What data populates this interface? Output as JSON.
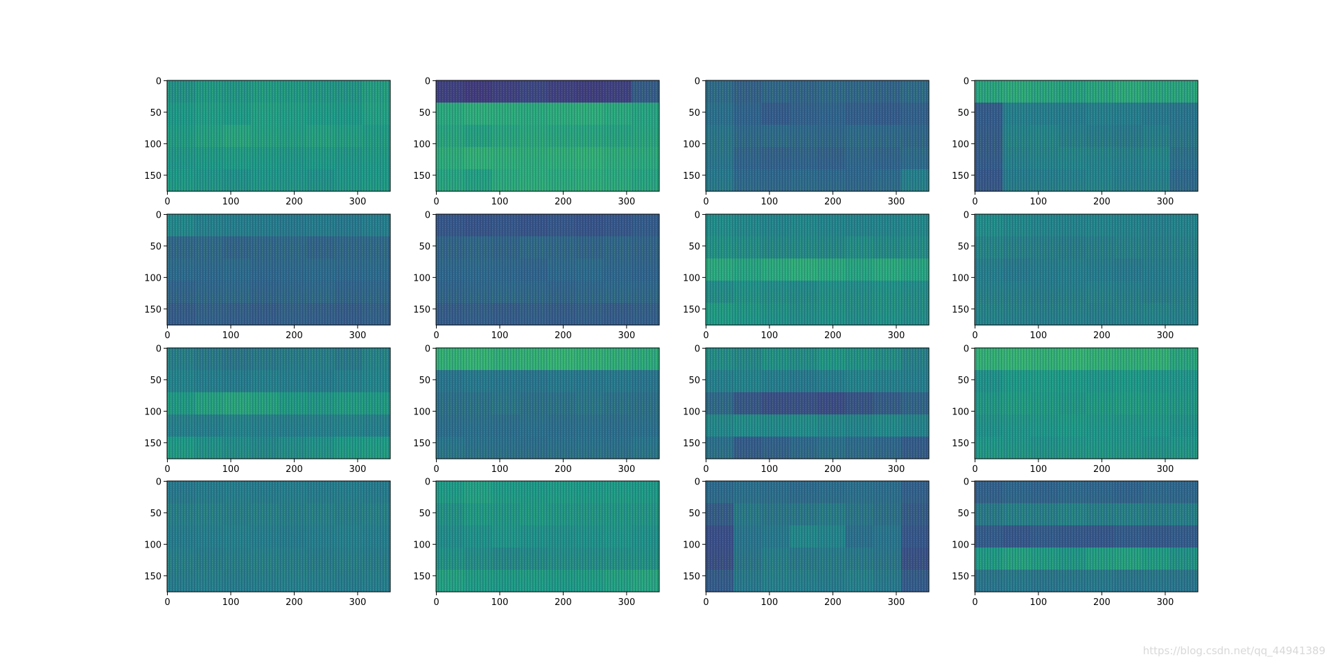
{
  "chart_data": [
    {
      "type": "heatmap",
      "colormap": "viridis",
      "clim": [
        0,
        1
      ],
      "xlim": [
        -0.5,
        351.5
      ],
      "ylim": [
        175.5,
        -0.5
      ],
      "xticks": [
        0,
        100,
        200,
        300
      ],
      "yticks": [
        0,
        50,
        100,
        150
      ],
      "values": [
        [
          0.52,
          0.55,
          0.54,
          0.56,
          0.55,
          0.54,
          0.53,
          0.57
        ],
        [
          0.55,
          0.57,
          0.56,
          0.58,
          0.57,
          0.56,
          0.55,
          0.58
        ],
        [
          0.56,
          0.58,
          0.6,
          0.58,
          0.57,
          0.58,
          0.57,
          0.56
        ],
        [
          0.54,
          0.55,
          0.56,
          0.55,
          0.54,
          0.55,
          0.54,
          0.55
        ],
        [
          0.55,
          0.53,
          0.52,
          0.54,
          0.53,
          0.52,
          0.54,
          0.55
        ]
      ]
    },
    {
      "type": "heatmap",
      "colormap": "viridis",
      "clim": [
        0,
        1
      ],
      "xlim": [
        -0.5,
        351.5
      ],
      "ylim": [
        175.5,
        -0.5
      ],
      "xticks": [
        0,
        100,
        200,
        300
      ],
      "yticks": [
        0,
        50,
        100,
        150
      ],
      "values": [
        [
          0.2,
          0.18,
          0.2,
          0.22,
          0.2,
          0.19,
          0.2,
          0.3
        ],
        [
          0.62,
          0.64,
          0.63,
          0.62,
          0.63,
          0.64,
          0.62,
          0.6
        ],
        [
          0.6,
          0.58,
          0.6,
          0.61,
          0.6,
          0.6,
          0.59,
          0.6
        ],
        [
          0.63,
          0.65,
          0.64,
          0.63,
          0.64,
          0.65,
          0.63,
          0.62
        ],
        [
          0.6,
          0.58,
          0.62,
          0.63,
          0.62,
          0.63,
          0.62,
          0.6
        ]
      ]
    },
    {
      "type": "heatmap",
      "colormap": "viridis",
      "clim": [
        0,
        1
      ],
      "xlim": [
        -0.5,
        351.5
      ],
      "ylim": [
        175.5,
        -0.5
      ],
      "xticks": [
        0,
        100,
        200,
        300
      ],
      "yticks": [
        0,
        50,
        100,
        150
      ],
      "values": [
        [
          0.36,
          0.32,
          0.34,
          0.33,
          0.35,
          0.34,
          0.33,
          0.36
        ],
        [
          0.38,
          0.33,
          0.3,
          0.32,
          0.33,
          0.31,
          0.3,
          0.32
        ],
        [
          0.4,
          0.35,
          0.36,
          0.35,
          0.34,
          0.36,
          0.35,
          0.34
        ],
        [
          0.4,
          0.33,
          0.32,
          0.33,
          0.32,
          0.34,
          0.33,
          0.36
        ],
        [
          0.42,
          0.35,
          0.34,
          0.36,
          0.35,
          0.34,
          0.36,
          0.45
        ]
      ]
    },
    {
      "type": "heatmap",
      "colormap": "viridis",
      "clim": [
        0,
        1
      ],
      "xlim": [
        -0.5,
        351.5
      ],
      "ylim": [
        175.5,
        -0.5
      ],
      "xticks": [
        0,
        100,
        200,
        300
      ],
      "yticks": [
        0,
        50,
        100,
        150
      ],
      "values": [
        [
          0.6,
          0.62,
          0.6,
          0.58,
          0.6,
          0.62,
          0.6,
          0.6
        ],
        [
          0.3,
          0.45,
          0.44,
          0.43,
          0.45,
          0.44,
          0.42,
          0.4
        ],
        [
          0.3,
          0.46,
          0.47,
          0.44,
          0.43,
          0.42,
          0.44,
          0.4
        ],
        [
          0.3,
          0.45,
          0.46,
          0.47,
          0.46,
          0.45,
          0.47,
          0.38
        ],
        [
          0.28,
          0.43,
          0.44,
          0.45,
          0.46,
          0.44,
          0.45,
          0.35
        ]
      ]
    },
    {
      "type": "heatmap",
      "colormap": "viridis",
      "clim": [
        0,
        1
      ],
      "xlim": [
        -0.5,
        351.5
      ],
      "ylim": [
        175.5,
        -0.5
      ],
      "xticks": [
        0,
        100,
        200,
        300
      ],
      "yticks": [
        0,
        50,
        100,
        150
      ],
      "values": [
        [
          0.48,
          0.45,
          0.44,
          0.43,
          0.42,
          0.43,
          0.42,
          0.44
        ],
        [
          0.34,
          0.35,
          0.33,
          0.34,
          0.35,
          0.33,
          0.34,
          0.35
        ],
        [
          0.36,
          0.35,
          0.36,
          0.34,
          0.35,
          0.36,
          0.35,
          0.36
        ],
        [
          0.33,
          0.34,
          0.35,
          0.33,
          0.34,
          0.35,
          0.33,
          0.34
        ],
        [
          0.3,
          0.32,
          0.31,
          0.3,
          0.32,
          0.31,
          0.3,
          0.32
        ]
      ]
    },
    {
      "type": "heatmap",
      "colormap": "viridis",
      "clim": [
        0,
        1
      ],
      "xlim": [
        -0.5,
        351.5
      ],
      "ylim": [
        175.5,
        -0.5
      ],
      "xticks": [
        0,
        100,
        200,
        300
      ],
      "yticks": [
        0,
        50,
        100,
        150
      ],
      "values": [
        [
          0.28,
          0.27,
          0.28,
          0.27,
          0.28,
          0.27,
          0.28,
          0.3
        ],
        [
          0.33,
          0.34,
          0.33,
          0.35,
          0.34,
          0.33,
          0.34,
          0.33
        ],
        [
          0.34,
          0.35,
          0.34,
          0.33,
          0.35,
          0.36,
          0.34,
          0.33
        ],
        [
          0.33,
          0.34,
          0.35,
          0.34,
          0.33,
          0.34,
          0.35,
          0.34
        ],
        [
          0.3,
          0.31,
          0.3,
          0.31,
          0.3,
          0.31,
          0.3,
          0.31
        ]
      ]
    },
    {
      "type": "heatmap",
      "colormap": "viridis",
      "clim": [
        0,
        1
      ],
      "xlim": [
        -0.5,
        351.5
      ],
      "ylim": [
        175.5,
        -0.5
      ],
      "xticks": [
        0,
        100,
        200,
        300
      ],
      "yticks": [
        0,
        50,
        100,
        150
      ],
      "values": [
        [
          0.5,
          0.48,
          0.47,
          0.48,
          0.47,
          0.46,
          0.47,
          0.48
        ],
        [
          0.52,
          0.5,
          0.48,
          0.49,
          0.48,
          0.5,
          0.49,
          0.5
        ],
        [
          0.62,
          0.6,
          0.62,
          0.64,
          0.62,
          0.6,
          0.62,
          0.6
        ],
        [
          0.5,
          0.52,
          0.5,
          0.49,
          0.51,
          0.5,
          0.52,
          0.5
        ],
        [
          0.56,
          0.54,
          0.52,
          0.5,
          0.52,
          0.5,
          0.52,
          0.5
        ]
      ]
    },
    {
      "type": "heatmap",
      "colormap": "viridis",
      "clim": [
        0,
        1
      ],
      "xlim": [
        -0.5,
        351.5
      ],
      "ylim": [
        175.5,
        -0.5
      ],
      "xticks": [
        0,
        100,
        200,
        300
      ],
      "yticks": [
        0,
        50,
        100,
        150
      ],
      "values": [
        [
          0.5,
          0.48,
          0.47,
          0.46,
          0.47,
          0.46,
          0.45,
          0.46
        ],
        [
          0.47,
          0.45,
          0.44,
          0.43,
          0.44,
          0.45,
          0.44,
          0.45
        ],
        [
          0.44,
          0.42,
          0.43,
          0.44,
          0.43,
          0.42,
          0.43,
          0.44
        ],
        [
          0.45,
          0.44,
          0.43,
          0.44,
          0.45,
          0.44,
          0.43,
          0.44
        ],
        [
          0.46,
          0.45,
          0.44,
          0.45,
          0.44,
          0.45,
          0.46,
          0.45
        ]
      ]
    },
    {
      "type": "heatmap",
      "colormap": "viridis",
      "clim": [
        0,
        1
      ],
      "xlim": [
        -0.5,
        351.5
      ],
      "ylim": [
        175.5,
        -0.5
      ],
      "xticks": [
        0,
        100,
        200,
        300
      ],
      "yticks": [
        0,
        50,
        100,
        150
      ],
      "values": [
        [
          0.44,
          0.42,
          0.4,
          0.42,
          0.43,
          0.44,
          0.42,
          0.46
        ],
        [
          0.46,
          0.44,
          0.43,
          0.45,
          0.44,
          0.43,
          0.45,
          0.47
        ],
        [
          0.55,
          0.58,
          0.6,
          0.58,
          0.55,
          0.54,
          0.56,
          0.55
        ],
        [
          0.45,
          0.44,
          0.46,
          0.45,
          0.44,
          0.45,
          0.46,
          0.45
        ],
        [
          0.55,
          0.52,
          0.5,
          0.48,
          0.5,
          0.52,
          0.55,
          0.56
        ]
      ]
    },
    {
      "type": "heatmap",
      "colormap": "viridis",
      "clim": [
        0,
        1
      ],
      "xlim": [
        -0.5,
        351.5
      ],
      "ylim": [
        175.5,
        -0.5
      ],
      "xticks": [
        0,
        100,
        200,
        300
      ],
      "yticks": [
        0,
        50,
        100,
        150
      ],
      "values": [
        [
          0.65,
          0.66,
          0.64,
          0.65,
          0.66,
          0.65,
          0.64,
          0.62
        ],
        [
          0.4,
          0.42,
          0.41,
          0.4,
          0.42,
          0.41,
          0.42,
          0.4
        ],
        [
          0.38,
          0.39,
          0.4,
          0.38,
          0.39,
          0.4,
          0.39,
          0.38
        ],
        [
          0.37,
          0.38,
          0.37,
          0.38,
          0.37,
          0.38,
          0.37,
          0.38
        ],
        [
          0.4,
          0.39,
          0.38,
          0.37,
          0.38,
          0.39,
          0.38,
          0.4
        ]
      ]
    },
    {
      "type": "heatmap",
      "colormap": "viridis",
      "clim": [
        0,
        1
      ],
      "xlim": [
        -0.5,
        351.5
      ],
      "ylim": [
        175.5,
        -0.5
      ],
      "xticks": [
        0,
        100,
        200,
        300
      ],
      "yticks": [
        0,
        50,
        100,
        150
      ],
      "values": [
        [
          0.5,
          0.48,
          0.52,
          0.5,
          0.54,
          0.52,
          0.5,
          0.45
        ],
        [
          0.45,
          0.46,
          0.44,
          0.42,
          0.44,
          0.46,
          0.45,
          0.44
        ],
        [
          0.35,
          0.28,
          0.25,
          0.26,
          0.24,
          0.27,
          0.3,
          0.33
        ],
        [
          0.48,
          0.5,
          0.49,
          0.5,
          0.48,
          0.47,
          0.49,
          0.46
        ],
        [
          0.38,
          0.3,
          0.32,
          0.35,
          0.38,
          0.36,
          0.34,
          0.3
        ]
      ]
    },
    {
      "type": "heatmap",
      "colormap": "viridis",
      "clim": [
        0,
        1
      ],
      "xlim": [
        -0.5,
        351.5
      ],
      "ylim": [
        175.5,
        -0.5
      ],
      "xticks": [
        0,
        100,
        200,
        300
      ],
      "yticks": [
        0,
        50,
        100,
        150
      ],
      "values": [
        [
          0.65,
          0.66,
          0.65,
          0.66,
          0.65,
          0.64,
          0.65,
          0.6
        ],
        [
          0.52,
          0.55,
          0.56,
          0.55,
          0.54,
          0.55,
          0.54,
          0.53
        ],
        [
          0.54,
          0.56,
          0.55,
          0.54,
          0.55,
          0.56,
          0.55,
          0.54
        ],
        [
          0.52,
          0.53,
          0.54,
          0.55,
          0.54,
          0.53,
          0.54,
          0.52
        ],
        [
          0.54,
          0.53,
          0.52,
          0.53,
          0.54,
          0.53,
          0.52,
          0.53
        ]
      ]
    },
    {
      "type": "heatmap",
      "colormap": "viridis",
      "clim": [
        0,
        1
      ],
      "xlim": [
        -0.5,
        351.5
      ],
      "ylim": [
        175.5,
        -0.5
      ],
      "xticks": [
        0,
        100,
        200,
        300
      ],
      "yticks": [
        0,
        50,
        100,
        150
      ],
      "values": [
        [
          0.42,
          0.43,
          0.44,
          0.43,
          0.44,
          0.43,
          0.44,
          0.43
        ],
        [
          0.44,
          0.45,
          0.44,
          0.45,
          0.44,
          0.45,
          0.44,
          0.45
        ],
        [
          0.43,
          0.44,
          0.45,
          0.44,
          0.43,
          0.44,
          0.45,
          0.44
        ],
        [
          0.44,
          0.43,
          0.44,
          0.45,
          0.44,
          0.43,
          0.44,
          0.43
        ],
        [
          0.43,
          0.44,
          0.43,
          0.44,
          0.45,
          0.44,
          0.43,
          0.44
        ]
      ]
    },
    {
      "type": "heatmap",
      "colormap": "viridis",
      "clim": [
        0,
        1
      ],
      "xlim": [
        -0.5,
        351.5
      ],
      "ylim": [
        175.5,
        -0.5
      ],
      "xticks": [
        0,
        100,
        200,
        300
      ],
      "yticks": [
        0,
        50,
        100,
        150
      ],
      "values": [
        [
          0.56,
          0.58,
          0.56,
          0.55,
          0.56,
          0.55,
          0.56,
          0.55
        ],
        [
          0.52,
          0.55,
          0.54,
          0.55,
          0.54,
          0.53,
          0.54,
          0.53
        ],
        [
          0.5,
          0.52,
          0.53,
          0.52,
          0.51,
          0.52,
          0.53,
          0.52
        ],
        [
          0.52,
          0.5,
          0.48,
          0.49,
          0.5,
          0.5,
          0.51,
          0.52
        ],
        [
          0.58,
          0.56,
          0.55,
          0.56,
          0.55,
          0.56,
          0.58,
          0.6
        ]
      ]
    },
    {
      "type": "heatmap",
      "colormap": "viridis",
      "clim": [
        0,
        1
      ],
      "xlim": [
        -0.5,
        351.5
      ],
      "ylim": [
        175.5,
        -0.5
      ],
      "xticks": [
        0,
        100,
        200,
        300
      ],
      "yticks": [
        0,
        50,
        100,
        150
      ],
      "values": [
        [
          0.36,
          0.38,
          0.37,
          0.36,
          0.37,
          0.38,
          0.37,
          0.32
        ],
        [
          0.3,
          0.42,
          0.4,
          0.41,
          0.43,
          0.4,
          0.38,
          0.3
        ],
        [
          0.25,
          0.4,
          0.42,
          0.48,
          0.47,
          0.38,
          0.4,
          0.28
        ],
        [
          0.25,
          0.4,
          0.44,
          0.42,
          0.43,
          0.42,
          0.4,
          0.26
        ],
        [
          0.3,
          0.42,
          0.45,
          0.44,
          0.43,
          0.45,
          0.42,
          0.3
        ]
      ]
    },
    {
      "type": "heatmap",
      "colormap": "viridis",
      "clim": [
        0,
        1
      ],
      "xlim": [
        -0.5,
        351.5
      ],
      "ylim": [
        175.5,
        -0.5
      ],
      "xticks": [
        0,
        100,
        200,
        300
      ],
      "yticks": [
        0,
        50,
        100,
        150
      ],
      "values": [
        [
          0.32,
          0.34,
          0.33,
          0.35,
          0.34,
          0.33,
          0.35,
          0.34
        ],
        [
          0.42,
          0.45,
          0.44,
          0.46,
          0.44,
          0.45,
          0.43,
          0.44
        ],
        [
          0.3,
          0.28,
          0.3,
          0.29,
          0.28,
          0.3,
          0.29,
          0.3
        ],
        [
          0.55,
          0.58,
          0.56,
          0.54,
          0.57,
          0.58,
          0.56,
          0.52
        ],
        [
          0.4,
          0.42,
          0.4,
          0.41,
          0.42,
          0.4,
          0.41,
          0.4
        ]
      ]
    }
  ],
  "watermark": "https://blog.csdn.net/qq_44941389"
}
